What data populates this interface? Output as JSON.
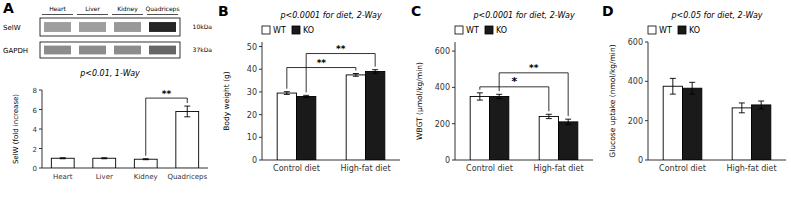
{
  "chart_data": [
    {
      "type": "bar",
      "title": "A",
      "categories": [
        "Heart",
        "Liver",
        "Kidney",
        "Quadriceps"
      ],
      "values": [
        1.0,
        1.0,
        0.9,
        5.8
      ],
      "errors": [
        0.05,
        0.05,
        0.05,
        0.55
      ],
      "color": "#ffffff",
      "ylabel": "SelW (fold increase)",
      "ylim": [
        0,
        8
      ],
      "yticks": [
        0,
        2,
        4,
        6,
        8
      ],
      "annotations": [
        "p<0.01, 1-Way"
      ],
      "significance": [
        {
          "from": "Kidney",
          "to": "Quadriceps",
          "label": "**"
        }
      ],
      "blot_lanes": [
        "Heart",
        "Liver",
        "Kidney",
        "Quadriceps"
      ],
      "blot_rows": [
        {
          "name": "SelW",
          "size": "10kDa"
        },
        {
          "name": "GAPDH",
          "size": "37kDa"
        }
      ]
    },
    {
      "type": "bar",
      "title": "B",
      "categories": [
        "Control diet",
        "High-fat diet"
      ],
      "series": [
        {
          "name": "WT",
          "color": "#ffffff",
          "values": [
            29.5,
            37.5
          ],
          "errors": [
            0.6,
            0.6
          ]
        },
        {
          "name": "KO",
          "color": "#1a1a1a",
          "values": [
            28.0,
            39.0
          ],
          "errors": [
            0.5,
            0.8
          ]
        }
      ],
      "ylabel": "Body weight (g)",
      "ylim": [
        0,
        52
      ],
      "yticks": [
        0,
        10,
        20,
        30,
        40,
        50
      ],
      "legend": "upper left",
      "annotations": [
        "p<0.0001 for diet, 2-Way"
      ],
      "significance": [
        {
          "series": "WT",
          "from": "Control diet",
          "to": "High-fat diet",
          "label": "**"
        },
        {
          "series": "KO",
          "from": "Control diet",
          "to": "High-fat diet",
          "label": "**"
        }
      ]
    },
    {
      "type": "bar",
      "title": "C",
      "categories": [
        "Control diet",
        "High-fat diet"
      ],
      "series": [
        {
          "name": "WT",
          "color": "#ffffff",
          "values": [
            350.0,
            240.0
          ],
          "errors": [
            20.0,
            12.0
          ]
        },
        {
          "name": "KO",
          "color": "#1a1a1a",
          "values": [
            350.0,
            210.0
          ],
          "errors": [
            12.0,
            15.0
          ]
        }
      ],
      "ylabel": "WBGT (μmol/kg/min)",
      "ylim": [
        0,
        650
      ],
      "yticks": [
        0,
        200,
        400,
        600
      ],
      "legend": "upper left",
      "annotations": [
        "p<0.0001 for diet, 2-Way"
      ],
      "significance": [
        {
          "series": "WT",
          "from": "Control diet",
          "to": "High-fat diet",
          "label": "*"
        },
        {
          "series": "KO",
          "from": "Control diet",
          "to": "High-fat diet",
          "label": "**"
        }
      ]
    },
    {
      "type": "bar",
      "title": "D",
      "categories": [
        "Control diet",
        "High-fat diet"
      ],
      "series": [
        {
          "name": "WT",
          "color": "#ffffff",
          "values": [
            375.0,
            265.0
          ],
          "errors": [
            40.0,
            25.0
          ]
        },
        {
          "name": "KO",
          "color": "#1a1a1a",
          "values": [
            365.0,
            280.0
          ],
          "errors": [
            30.0,
            20.0
          ]
        }
      ],
      "ylabel": "Glucose uptake (nmol/kg/min)",
      "ylim": [
        0,
        600
      ],
      "yticks": [
        0,
        200,
        400,
        600
      ],
      "legend": "upper left",
      "annotations": [
        "p<0.05 for diet, 2-Way"
      ]
    }
  ]
}
